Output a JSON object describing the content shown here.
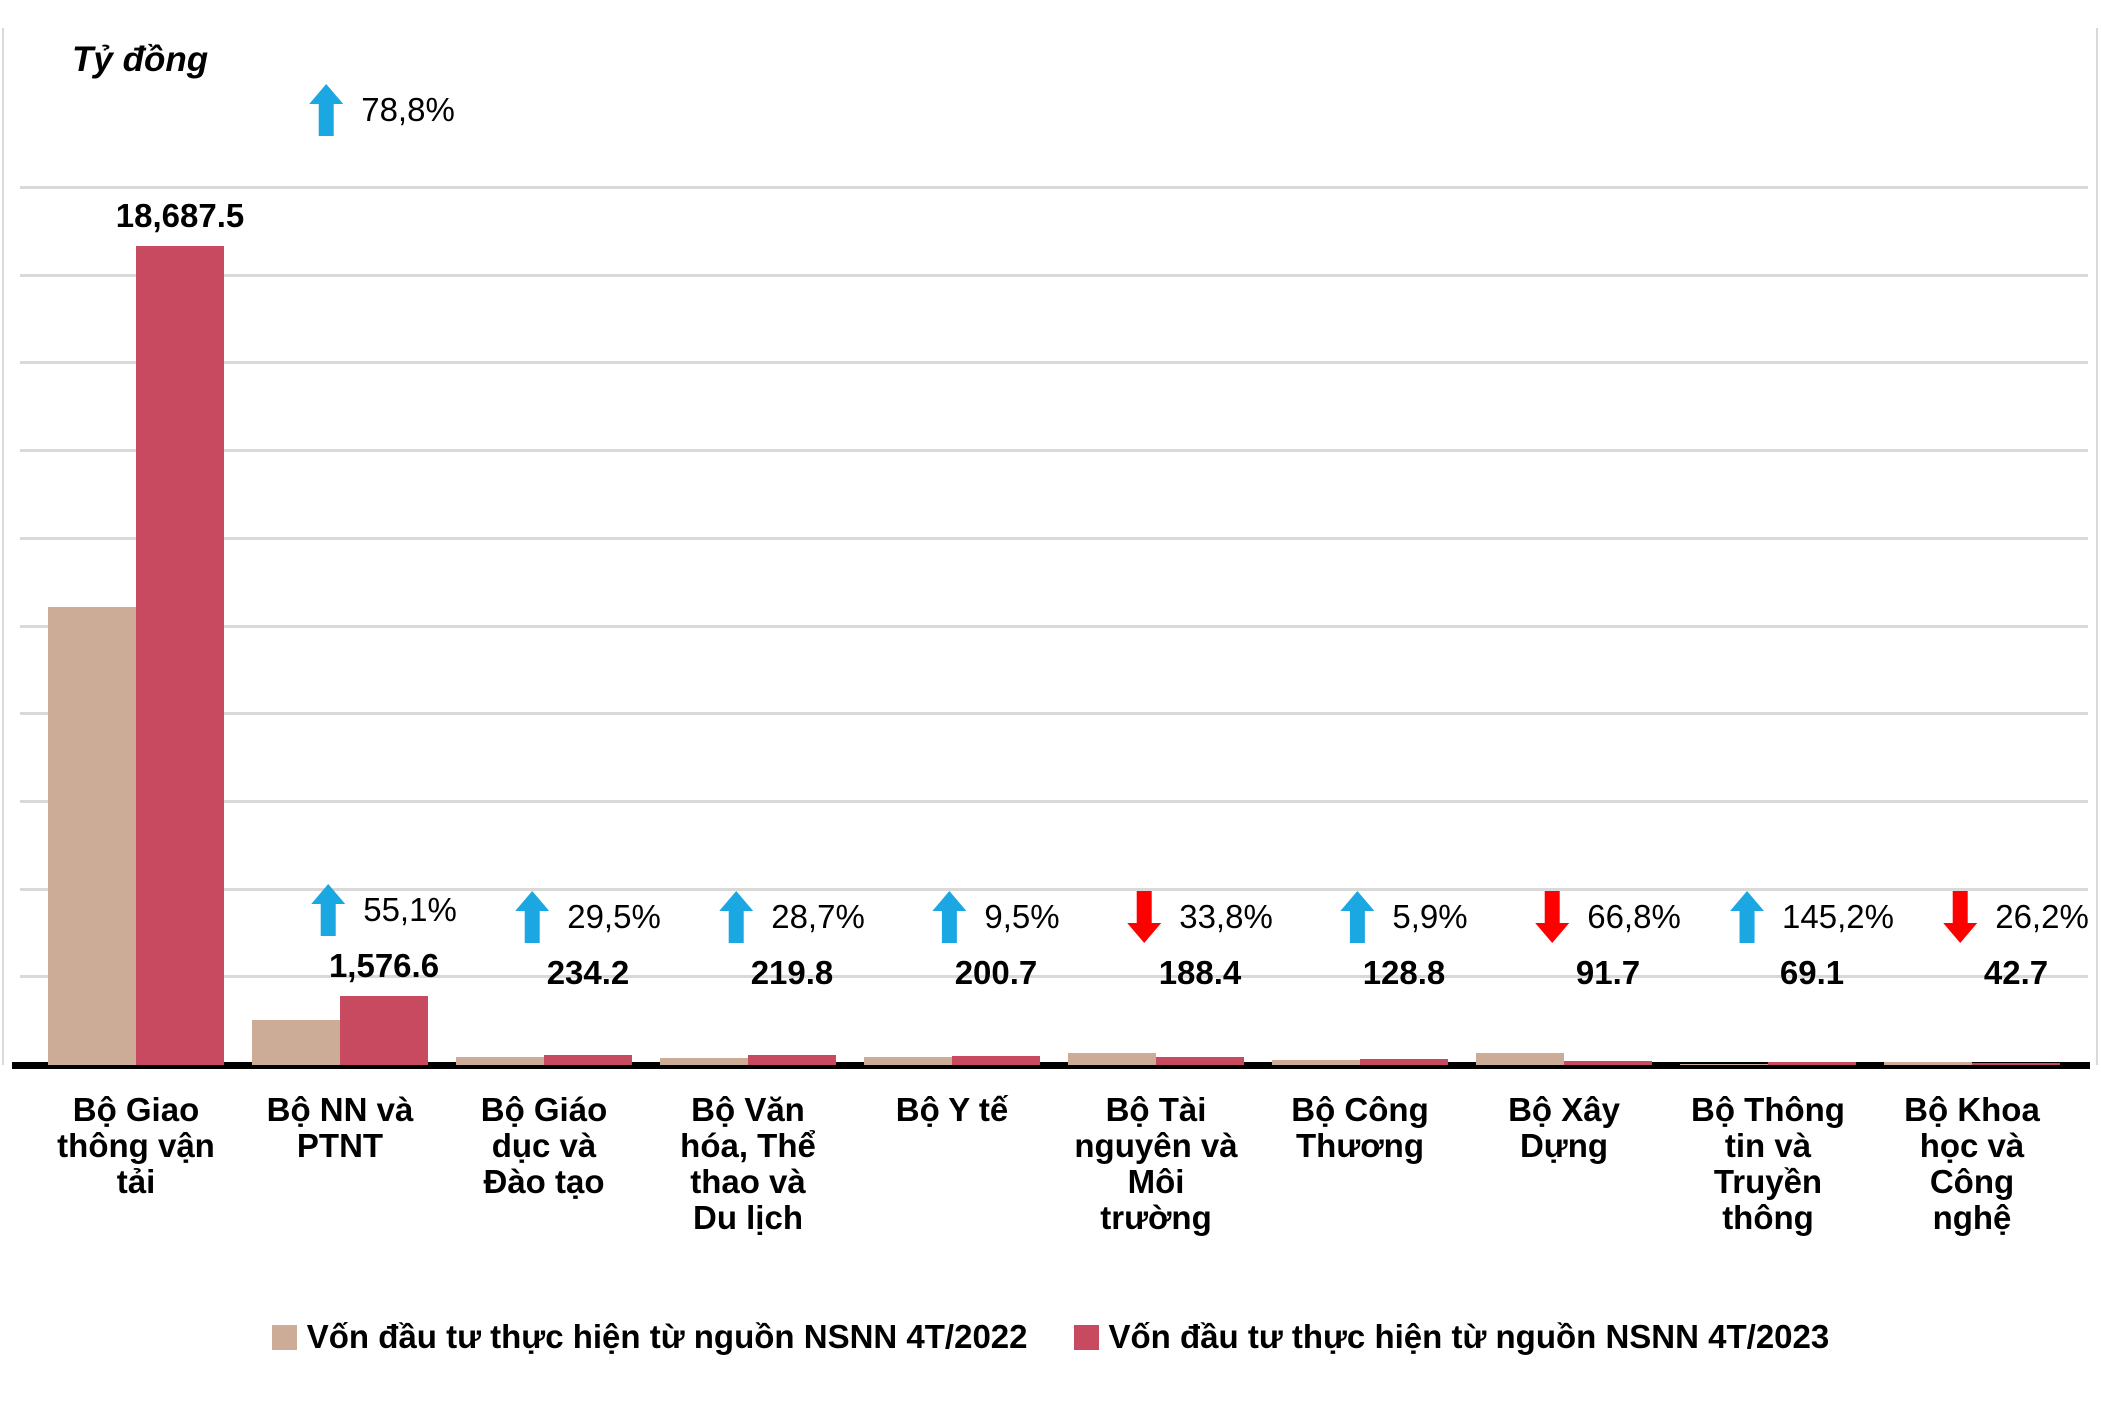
{
  "title": "Tỷ đồng",
  "legend": {
    "position": "bottom",
    "entries": [
      {
        "label": "Vốn đầu tư thực hiện từ nguồn NSNN 4T/2022",
        "color": "#CDAC97"
      },
      {
        "label": "Vốn đầu tư thực hiện từ nguồn NSNN 4T/2023",
        "color": "#C84A60"
      }
    ]
  },
  "chart_data": {
    "type": "bar",
    "title": "Tỷ đồng",
    "ylabel": "Tỷ đồng",
    "xlabel": "",
    "ylim": [
      0,
      20000
    ],
    "gridline_step": 2000,
    "grid": true,
    "legend_position": "bottom",
    "categories": [
      "Bộ Giao thông vận tải",
      "Bộ NN và PTNT",
      "Bộ Giáo dục và Đào tạo",
      "Bộ Văn hóa, Thể thao và Du lịch",
      "Bộ Y tế",
      "Bộ Tài nguyên và Môi trường",
      "Bộ Công Thương",
      "Bộ Xây Dựng",
      "Bộ Thông tin và Truyền thông",
      "Bộ Khoa học và Công nghệ"
    ],
    "categories_wrapped": [
      "Bộ Giao\nthông vận\ntải",
      "Bộ NN và\nPTNT",
      "Bộ Giáo\ndục và\nĐào tạo",
      "Bộ Văn\nhóa, Thể\nthao và\nDu lịch",
      "Bộ Y tế",
      "Bộ Tài\nnguyên và\nMôi\ntrường",
      "Bộ Công\nThương",
      "Bộ Xây\nDựng",
      "Bộ Thông\ntin và\nTruyền\nthông",
      "Bộ Khoa\nhọc và\nCông\nnghệ"
    ],
    "series": [
      {
        "name": "Vốn đầu tư thực hiện từ nguồn NSNN 4T/2022",
        "color": "#CDAC97",
        "estimated_from_bars": true,
        "values": [
          10450,
          1017,
          181,
          171,
          183,
          285,
          122,
          276,
          28,
          58
        ]
      },
      {
        "name": "Vốn đầu tư thực hiện từ nguồn NSNN 4T/2023",
        "color": "#C84A60",
        "estimated_from_bars": false,
        "values": [
          18687.5,
          1576.6,
          234.2,
          219.8,
          200.7,
          188.4,
          128.8,
          91.7,
          69.1,
          42.7
        ]
      }
    ],
    "value_labels": [
      "18,687.5",
      "1,576.6",
      "234.2",
      "219.8",
      "200.7",
      "188.4",
      "128.8",
      "91.7",
      "69.1",
      "42.7"
    ],
    "pct_changes": [
      {
        "text": "78,8%",
        "direction": "up"
      },
      {
        "text": "55,1%",
        "direction": "up"
      },
      {
        "text": "29,5%",
        "direction": "up"
      },
      {
        "text": "28,7%",
        "direction": "up"
      },
      {
        "text": "9,5%",
        "direction": "up"
      },
      {
        "text": "33,8%",
        "direction": "down"
      },
      {
        "text": "5,9%",
        "direction": "up"
      },
      {
        "text": "66,8%",
        "direction": "down"
      },
      {
        "text": "145,2%",
        "direction": "up"
      },
      {
        "text": "26,2%",
        "direction": "down"
      }
    ],
    "arrow_up_color": "#1BA7E1",
    "arrow_down_color": "#FE0000",
    "gridline_color": "#D9D9D9",
    "axis_color": "#000000"
  }
}
